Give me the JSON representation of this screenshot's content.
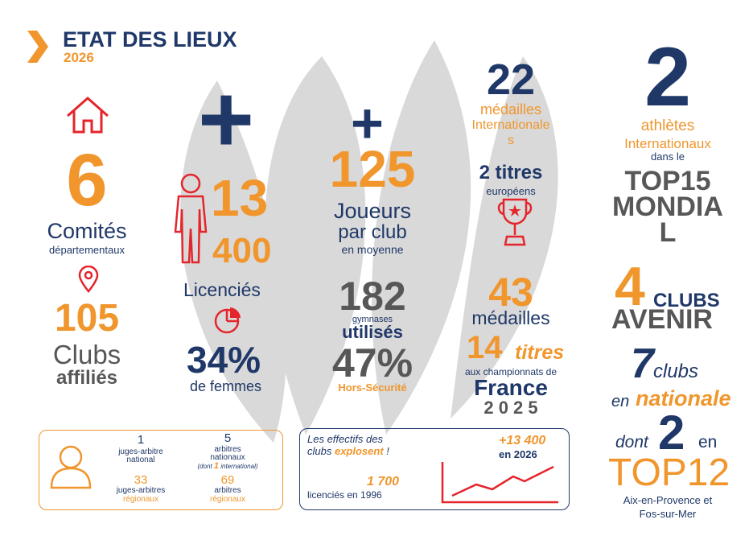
{
  "header": {
    "title": "ETAT DES LIEUX",
    "year": "2026"
  },
  "col1": {
    "n_comites": "6",
    "comites": "Comités",
    "departementaux": "départementaux",
    "n_clubs": "105",
    "clubs": "Clubs",
    "affilies": "affiliés"
  },
  "col2": {
    "plus": "+",
    "n_13": "13",
    "n_400": "400",
    "licencies": "Licenciés",
    "pct_femmes": "34%",
    "de_femmes": "de femmes"
  },
  "col3": {
    "plus": "+",
    "n_125": "125",
    "joueurs": "Joueurs",
    "par_club": "par club",
    "en_moyenne": "en moyenne",
    "n_182": "182",
    "gymnases": "gymnases",
    "utilises": "utilisés",
    "pct_hors": "47%",
    "hors_securite": "Hors-Sécurité"
  },
  "col4": {
    "n_22": "22",
    "medailles": "médailles",
    "internationale": "Internationale",
    "s": "s",
    "deux_titres": "2 titres",
    "europeens": "européens",
    "n_43": "43",
    "medailles2": "médailles",
    "n_14": "14",
    "titres": "titres",
    "aux_championnats": "aux championnats de",
    "france": "France",
    "year": "2 0 2 5"
  },
  "col5": {
    "n_2": "2",
    "athletes": "athlètes",
    "internationaux": "Internationaux",
    "dans_le": "dans le",
    "top15": "TOP15",
    "mondia": "MONDIA",
    "l": "L",
    "n_4": "4",
    "clubs": "CLUBS",
    "avenir": "AVENIR",
    "n_7": "7",
    "clubs_lower": "clubs",
    "en": "en",
    "nationale": "nationale",
    "dont": "dont",
    "n_2b": "2",
    "en2": "en",
    "top12": "TOP12",
    "cities1": "Aix-en-Provence et",
    "cities2": "Fos-sur-Mer"
  },
  "referees": {
    "n1": "1",
    "l1a": "juges-arbitre",
    "l1b": "national",
    "n5": "5",
    "l5a": "arbitres",
    "l5b": "nationaux",
    "l5c1": "(dont ",
    "l5c2": "1",
    "l5c3": " international)",
    "n33": "33",
    "l33a": "juges-arbitres",
    "l33b": "régionaux",
    "n69": "69",
    "l69a": "arbitres",
    "l69b": "régionaux"
  },
  "effectifs": {
    "text1": "Les effectifs des",
    "text2a": "clubs ",
    "text2b": "explosent",
    "text2c": " !",
    "n1700": "1 700",
    "lic1996": "licenciés en 1996",
    "plus13400": "+13 400",
    "en2026": "en 2026"
  },
  "colors": {
    "navy": "#1f3868",
    "orange": "#f0962d",
    "grey": "#575757",
    "red": "#e4252b",
    "shape": "#d9d9d9"
  }
}
